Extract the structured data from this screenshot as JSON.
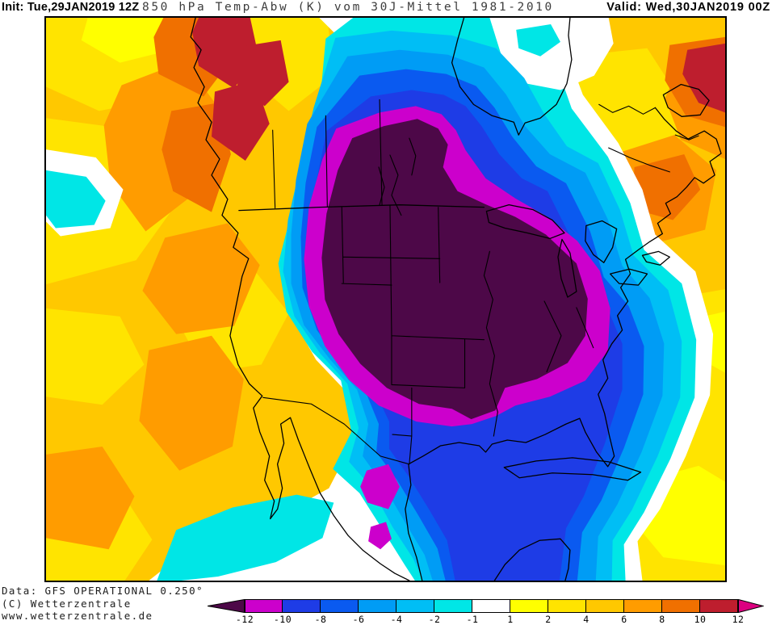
{
  "header": {
    "init_label": "Init:",
    "init_value": "Tue,29JAN2019 12Z",
    "subtitle": "850 hPa Temp-Abw (K) vom 30J-Mittel 1981-2010",
    "valid_label": "Valid:",
    "valid_value": "Wed,30JAN2019 00Z"
  },
  "footer": {
    "data_line": "Data: GFS OPERATIONAL 0.250°",
    "copyright_line": "(C) Wetterzentrale",
    "website": "www.wetterzentrale.de"
  },
  "colorbar": {
    "unit": "K",
    "below_arrow_color": "#4D0848",
    "above_arrow_color": "#DC0080",
    "tick_labels": [
      "-12",
      "-10",
      "-8",
      "-6",
      "-4",
      "-2",
      "-1",
      "1",
      "2",
      "4",
      "6",
      "8",
      "10",
      "12"
    ],
    "cells": [
      {
        "range": "-12 to -10",
        "color": "#CC00CC"
      },
      {
        "range": "-10 to -8",
        "color": "#1E3CE6"
      },
      {
        "range": "-8 to -6",
        "color": "#0A5AF0"
      },
      {
        "range": "-6 to -4",
        "color": "#009CF5"
      },
      {
        "range": "-4 to -2",
        "color": "#00BEF5"
      },
      {
        "range": "-2 to -1",
        "color": "#00E6E6"
      },
      {
        "range": "-1 to 1",
        "color": "#FFFFFF",
        "gap": true
      },
      {
        "range": "1 to 2",
        "color": "#FFFF00"
      },
      {
        "range": "2 to 4",
        "color": "#FFE400"
      },
      {
        "range": "4 to 6",
        "color": "#FFC800"
      },
      {
        "range": "6 to 8",
        "color": "#FF9C00"
      },
      {
        "range": "8 to 10",
        "color": "#F07000"
      },
      {
        "range": "10 to 12",
        "color": "#BE1E2E"
      }
    ]
  },
  "map": {
    "region": "North America",
    "palette": {
      "lt_m12": "#4D0848",
      "m10_12": "#CC00CC",
      "m8_10": "#1E3CE6",
      "m6_8": "#0A5AF0",
      "m4_6": "#009CF5",
      "m2_4": "#00BEF5",
      "m1_2": "#00E6E6",
      "neutral": "#FFFFFF",
      "p1_2": "#FFFF00",
      "p2_4": "#FFE400",
      "p4_6": "#FFC800",
      "p6_8": "#FF9C00",
      "p8_10": "#F07000",
      "p10_12": "#BE1E2E",
      "gt12": "#DC0080"
    },
    "anomaly_regions": [
      {
        "name": "extreme-cold-core",
        "range_k": "below -12",
        "location": "Upper Midwest / Great Lakes / central USA and southern Canada"
      },
      {
        "name": "cold-ring",
        "range_k": "-12 to -10",
        "location": "surrounding the core from the Plains to the Ohio Valley"
      },
      {
        "name": "cold-envelope",
        "range_k": "-10 to -1",
        "location": "central and eastern North America, Gulf of Mexico, western Atlantic"
      },
      {
        "name": "warm-west",
        "range_k": "+2 to +12",
        "location": "western North America, Alaska panhandle, Yukon"
      },
      {
        "name": "warm-east",
        "range_k": "+2 to +10",
        "location": "Quebec, Labrador, Newfoundland, subtropical Atlantic"
      },
      {
        "name": "hot-spots",
        "range_k": "+10 to +12",
        "location": "Yukon and far northeastern Atlantic corner"
      }
    ]
  }
}
